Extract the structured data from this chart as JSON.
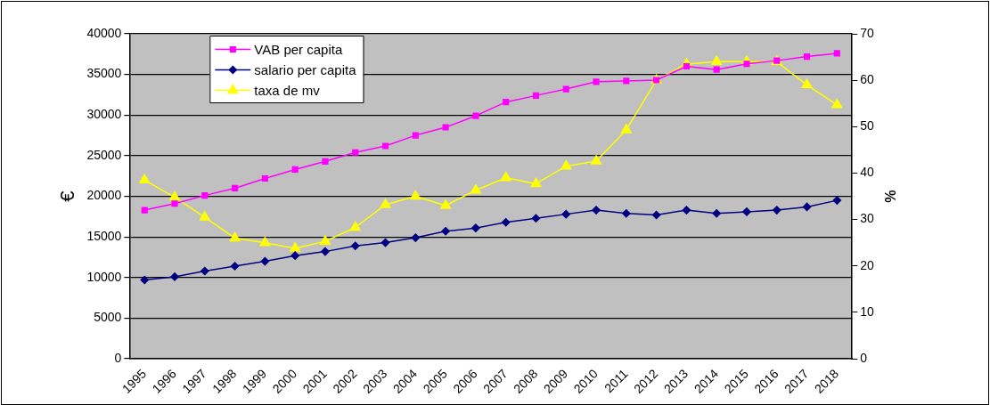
{
  "chart_data": {
    "type": "line",
    "ylabel": "€",
    "y2label": "%",
    "categories": [
      "1995",
      "1996",
      "1997",
      "1998",
      "1999",
      "2000",
      "2001",
      "2002",
      "2003",
      "2004",
      "2005",
      "2006",
      "2007",
      "2008",
      "2009",
      "2010",
      "2011",
      "2012",
      "2013",
      "2014",
      "2015",
      "2016",
      "2017",
      "2018"
    ],
    "series": [
      {
        "name": "VAB per capita",
        "color": "#ff00ff",
        "marker": "square",
        "values": [
          18300,
          19100,
          20100,
          21000,
          22200,
          23300,
          24300,
          25400,
          26200,
          27500,
          28500,
          29900,
          31600,
          32400,
          33200,
          34100,
          34200,
          34300,
          36000,
          35600,
          36300,
          36700,
          37200,
          37600
        ]
      },
      {
        "name": "salario per capita",
        "color": "#000080",
        "marker": "diamond",
        "values": [
          9700,
          10100,
          10800,
          11400,
          12000,
          12700,
          13200,
          13900,
          14300,
          14900,
          15700,
          16100,
          16800,
          17300,
          17800,
          18300,
          17900,
          17700,
          18300,
          17900,
          18100,
          18300,
          18700,
          19500
        ]
      },
      {
        "name": "taxa de mv",
        "color": "#ffff00",
        "marker": "triangle",
        "axis": "y2",
        "values": [
          38.5,
          34.8,
          30.5,
          26,
          25,
          23.8,
          25.3,
          28.3,
          33.2,
          35,
          33,
          36.3,
          39,
          37.7,
          41.5,
          42.6,
          49.3,
          60,
          63.5,
          64,
          64,
          64,
          59,
          54.7
        ]
      }
    ],
    "ylim": [
      0,
      40000
    ],
    "yticks": [
      0,
      5000,
      10000,
      15000,
      20000,
      25000,
      30000,
      35000,
      40000
    ],
    "y2lim": [
      0,
      70
    ],
    "y2ticks": [
      0,
      10,
      20,
      30,
      40,
      50,
      60,
      70
    ],
    "grid": "y",
    "legend": "top left",
    "line_style": "solid"
  }
}
